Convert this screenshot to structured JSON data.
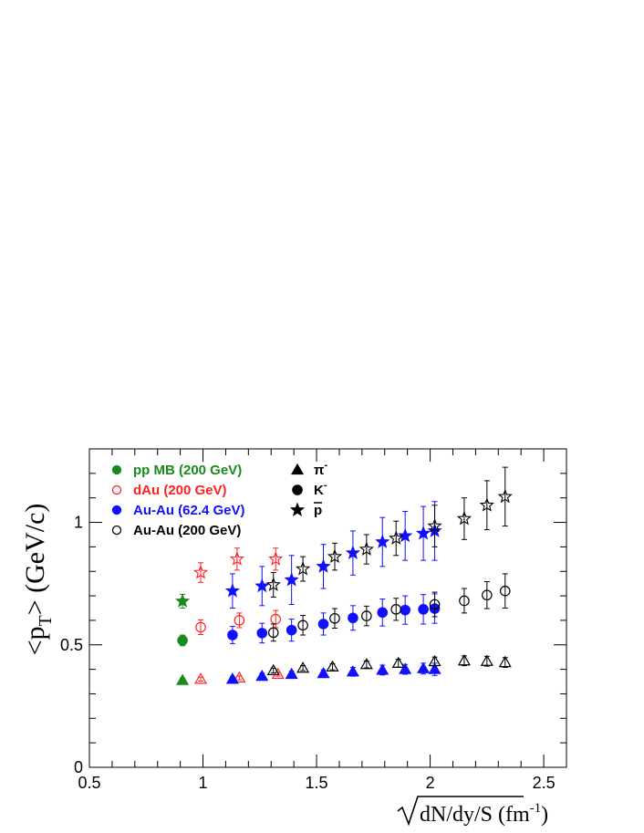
{
  "chart_data": {
    "type": "scatter",
    "title": "",
    "xlabel_main": "dN/dy/S (fm",
    "xlabel_sup": "-1",
    "xlabel_close": ")",
    "ylabel_main": "<p",
    "ylabel_sub": "T",
    "ylabel_close": "> (GeV/c)",
    "xlim": [
      0.5,
      2.6
    ],
    "ylim": [
      0,
      1.3
    ],
    "x_ticks": [
      {
        "value": 0.5,
        "label": "0.5"
      },
      {
        "value": 1,
        "label": "1"
      },
      {
        "value": 1.5,
        "label": "1.5"
      },
      {
        "value": 2,
        "label": "2"
      },
      {
        "value": 2.5,
        "label": "2.5"
      }
    ],
    "y_ticks": [
      {
        "value": 0,
        "label": "0"
      },
      {
        "value": 0.5,
        "label": "0.5"
      },
      {
        "value": 1,
        "label": "1"
      }
    ],
    "grid": false,
    "legend_systems": [
      {
        "label": "pp MB (200 GeV)",
        "color": "#1a8a1a",
        "marker": "filled-circle"
      },
      {
        "label": "dAu (200 GeV)",
        "color": "#ff2020",
        "marker": "open-circle"
      },
      {
        "label": "Au-Au (62.4 GeV)",
        "color": "#1010ff",
        "marker": "filled-circle"
      },
      {
        "label": "Au-Au (200 GeV)",
        "color": "#000000",
        "marker": "open-circle"
      }
    ],
    "legend_particles": [
      {
        "label": "π",
        "sup": "-",
        "marker": "triangle"
      },
      {
        "label": "K",
        "sup": "-",
        "marker": "circle"
      },
      {
        "label": "p",
        "overline": true,
        "marker": "star"
      }
    ],
    "series": [
      {
        "system": "pp MB (200 GeV)",
        "particle": "π-",
        "color": "#1a8a1a",
        "filled": true,
        "marker": "triangle",
        "points": [
          {
            "x": 0.91,
            "y": 0.355,
            "err": 0.008
          }
        ]
      },
      {
        "system": "pp MB (200 GeV)",
        "particle": "K-",
        "color": "#1a8a1a",
        "filled": true,
        "marker": "circle",
        "points": [
          {
            "x": 0.91,
            "y": 0.518,
            "err": 0.022
          }
        ]
      },
      {
        "system": "pp MB (200 GeV)",
        "particle": "pbar",
        "color": "#1a8a1a",
        "filled": true,
        "marker": "star",
        "points": [
          {
            "x": 0.91,
            "y": 0.678,
            "err": 0.028
          }
        ]
      },
      {
        "system": "dAu (200 GeV)",
        "particle": "π-",
        "color": "#ff2020",
        "filled": false,
        "marker": "triangle",
        "points": [
          {
            "x": 0.99,
            "y": 0.36,
            "err": 0.008
          },
          {
            "x": 1.16,
            "y": 0.365,
            "err": 0.008
          },
          {
            "x": 1.33,
            "y": 0.38,
            "err": 0.008
          }
        ]
      },
      {
        "system": "dAu (200 GeV)",
        "particle": "K-",
        "color": "#ff2020",
        "filled": false,
        "marker": "circle",
        "points": [
          {
            "x": 0.99,
            "y": 0.572,
            "err": 0.03
          },
          {
            "x": 1.16,
            "y": 0.6,
            "err": 0.03
          },
          {
            "x": 1.32,
            "y": 0.605,
            "err": 0.035
          }
        ]
      },
      {
        "system": "dAu (200 GeV)",
        "particle": "pbar",
        "color": "#ff2020",
        "filled": false,
        "marker": "star",
        "points": [
          {
            "x": 0.99,
            "y": 0.795,
            "err": 0.04
          },
          {
            "x": 1.15,
            "y": 0.85,
            "err": 0.045
          },
          {
            "x": 1.32,
            "y": 0.85,
            "err": 0.045
          }
        ]
      },
      {
        "system": "Au-Au (62.4 GeV)",
        "particle": "π-",
        "color": "#1010ff",
        "filled": true,
        "marker": "triangle",
        "points": [
          {
            "x": 1.13,
            "y": 0.36,
            "err": 0.01
          },
          {
            "x": 1.26,
            "y": 0.372,
            "err": 0.012
          },
          {
            "x": 1.39,
            "y": 0.38,
            "err": 0.012
          },
          {
            "x": 1.53,
            "y": 0.383,
            "err": 0.015
          },
          {
            "x": 1.66,
            "y": 0.39,
            "err": 0.018
          },
          {
            "x": 1.79,
            "y": 0.397,
            "err": 0.02
          },
          {
            "x": 1.89,
            "y": 0.4,
            "err": 0.02
          },
          {
            "x": 1.97,
            "y": 0.403,
            "err": 0.022
          },
          {
            "x": 2.02,
            "y": 0.4,
            "err": 0.025
          }
        ]
      },
      {
        "system": "Au-Au (62.4 GeV)",
        "particle": "K-",
        "color": "#1010ff",
        "filled": true,
        "marker": "circle",
        "points": [
          {
            "x": 1.13,
            "y": 0.54,
            "err": 0.035
          },
          {
            "x": 1.26,
            "y": 0.548,
            "err": 0.04
          },
          {
            "x": 1.39,
            "y": 0.56,
            "err": 0.045
          },
          {
            "x": 1.53,
            "y": 0.585,
            "err": 0.045
          },
          {
            "x": 1.66,
            "y": 0.61,
            "err": 0.05
          },
          {
            "x": 1.79,
            "y": 0.632,
            "err": 0.055
          },
          {
            "x": 1.89,
            "y": 0.642,
            "err": 0.058
          },
          {
            "x": 1.97,
            "y": 0.645,
            "err": 0.06
          },
          {
            "x": 2.02,
            "y": 0.648,
            "err": 0.06
          }
        ]
      },
      {
        "system": "Au-Au (62.4 GeV)",
        "particle": "pbar",
        "color": "#1010ff",
        "filled": true,
        "marker": "star",
        "points": [
          {
            "x": 1.13,
            "y": 0.72,
            "err": 0.07
          },
          {
            "x": 1.26,
            "y": 0.74,
            "err": 0.08
          },
          {
            "x": 1.39,
            "y": 0.765,
            "err": 0.1
          },
          {
            "x": 1.53,
            "y": 0.82,
            "err": 0.09
          },
          {
            "x": 1.66,
            "y": 0.875,
            "err": 0.09
          },
          {
            "x": 1.79,
            "y": 0.92,
            "err": 0.1
          },
          {
            "x": 1.89,
            "y": 0.945,
            "err": 0.1
          },
          {
            "x": 1.97,
            "y": 0.955,
            "err": 0.11
          },
          {
            "x": 2.02,
            "y": 0.965,
            "err": 0.12
          }
        ]
      },
      {
        "system": "Au-Au (200 GeV)",
        "particle": "π-",
        "color": "#000000",
        "filled": false,
        "marker": "triangle",
        "points": [
          {
            "x": 1.31,
            "y": 0.395,
            "err": 0.01
          },
          {
            "x": 1.44,
            "y": 0.405,
            "err": 0.01
          },
          {
            "x": 1.57,
            "y": 0.41,
            "err": 0.012
          },
          {
            "x": 1.72,
            "y": 0.42,
            "err": 0.014
          },
          {
            "x": 1.86,
            "y": 0.425,
            "err": 0.016
          },
          {
            "x": 2.02,
            "y": 0.432,
            "err": 0.018
          },
          {
            "x": 2.15,
            "y": 0.435,
            "err": 0.02
          },
          {
            "x": 2.25,
            "y": 0.433,
            "err": 0.02
          },
          {
            "x": 2.33,
            "y": 0.428,
            "err": 0.02
          }
        ]
      },
      {
        "system": "Au-Au (200 GeV)",
        "particle": "K-",
        "color": "#000000",
        "filled": false,
        "marker": "circle",
        "points": [
          {
            "x": 1.31,
            "y": 0.55,
            "err": 0.035
          },
          {
            "x": 1.44,
            "y": 0.58,
            "err": 0.04
          },
          {
            "x": 1.58,
            "y": 0.608,
            "err": 0.04
          },
          {
            "x": 1.72,
            "y": 0.618,
            "err": 0.04
          },
          {
            "x": 1.85,
            "y": 0.645,
            "err": 0.045
          },
          {
            "x": 2.02,
            "y": 0.665,
            "err": 0.05
          },
          {
            "x": 2.15,
            "y": 0.68,
            "err": 0.05
          },
          {
            "x": 2.25,
            "y": 0.703,
            "err": 0.055
          },
          {
            "x": 2.33,
            "y": 0.72,
            "err": 0.07
          }
        ]
      },
      {
        "system": "Au-Au (200 GeV)",
        "particle": "pbar",
        "color": "#000000",
        "filled": false,
        "marker": "star",
        "points": [
          {
            "x": 1.31,
            "y": 0.745,
            "err": 0.05
          },
          {
            "x": 1.44,
            "y": 0.81,
            "err": 0.05
          },
          {
            "x": 1.58,
            "y": 0.86,
            "err": 0.055
          },
          {
            "x": 1.72,
            "y": 0.89,
            "err": 0.06
          },
          {
            "x": 1.85,
            "y": 0.935,
            "err": 0.07
          },
          {
            "x": 2.02,
            "y": 0.985,
            "err": 0.085
          },
          {
            "x": 2.15,
            "y": 1.015,
            "err": 0.085
          },
          {
            "x": 2.25,
            "y": 1.07,
            "err": 0.1
          },
          {
            "x": 2.33,
            "y": 1.105,
            "err": 0.12
          }
        ]
      }
    ]
  }
}
